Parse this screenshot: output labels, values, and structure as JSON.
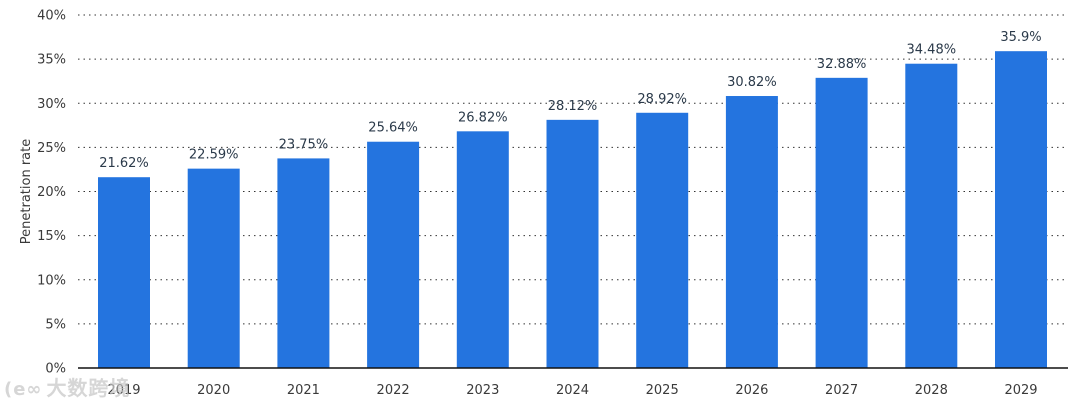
{
  "chart_data": {
    "type": "bar",
    "categories": [
      "2019",
      "2020",
      "2021",
      "2022",
      "2023",
      "2024",
      "2025",
      "2026",
      "2027",
      "2028",
      "2029"
    ],
    "values": [
      21.62,
      22.59,
      23.75,
      25.64,
      26.82,
      28.12,
      28.92,
      30.82,
      32.88,
      34.48,
      35.9
    ],
    "value_labels": [
      "21.62%",
      "22.59%",
      "23.75%",
      "25.64%",
      "26.82%",
      "28.12%",
      "28.92%",
      "30.82%",
      "32.88%",
      "34.48%",
      "35.9%"
    ],
    "title": "",
    "xlabel": "",
    "ylabel": "Penetration rate",
    "ylim": [
      0,
      40
    ],
    "yticks": [
      0,
      5,
      10,
      15,
      20,
      25,
      30,
      35,
      40
    ],
    "ytick_labels": [
      "0%",
      "5%",
      "10%",
      "15%",
      "20%",
      "25%",
      "30%",
      "35%",
      "40%"
    ],
    "grid": true,
    "legend": "none",
    "bar_color": "#2474df"
  },
  "watermark": {
    "mark": "(e∞",
    "text": "大数跨境"
  }
}
